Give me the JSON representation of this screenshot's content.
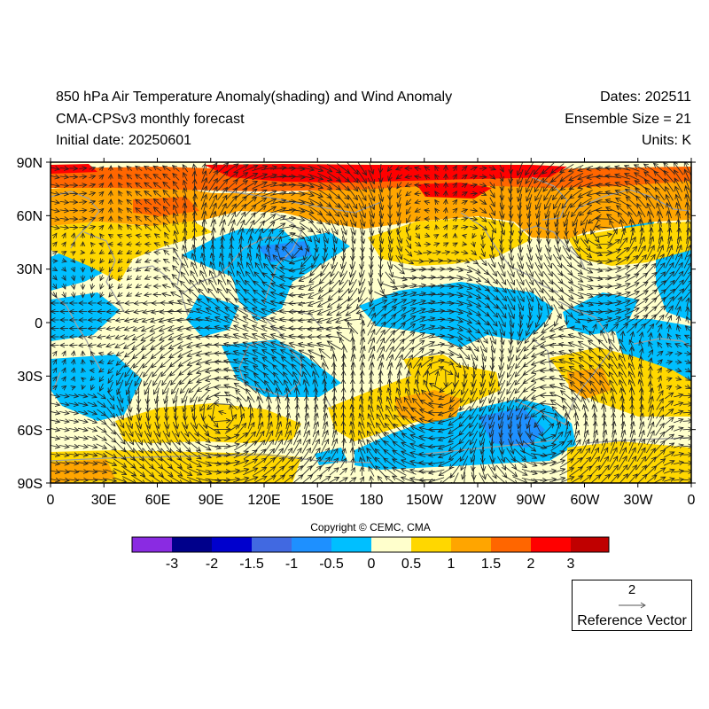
{
  "header": {
    "title": "850 hPa Air Temperature Anomaly(shading) and Wind Anomaly",
    "model": "CMA-CPSv3 monthly forecast",
    "initial": "Initial date: 20250601",
    "dates": "Dates: 202511",
    "ensemble": "Ensemble Size = 21",
    "units": "Units: K"
  },
  "axes": {
    "lat_labels": [
      "90N",
      "60N",
      "30N",
      "0",
      "30S",
      "60S",
      "90S"
    ],
    "lon_labels": [
      "0",
      "30E",
      "60E",
      "90E",
      "120E",
      "150E",
      "180",
      "150W",
      "120W",
      "90W",
      "60W",
      "30W",
      "0"
    ]
  },
  "copyright": "Copyright © CEMC, CMA",
  "colorbar": {
    "colors": [
      "#8a2be2",
      "#00008b",
      "#0000cd",
      "#4169e1",
      "#1e90ff",
      "#00bfff",
      "#ffffcc",
      "#ffd700",
      "#ffa500",
      "#ff6600",
      "#ff0000",
      "#c00000"
    ],
    "labels": [
      "-3",
      "-2",
      "-1.5",
      "-1",
      "-0.5",
      "0",
      "0.5",
      "1",
      "1.5",
      "2",
      "3"
    ]
  },
  "reference_vector": {
    "value": "2",
    "label": "Reference Vector"
  },
  "map_colors": {
    "background": "#ffffcc",
    "coast": "#a0a0a0",
    "arrow": "#222222"
  }
}
